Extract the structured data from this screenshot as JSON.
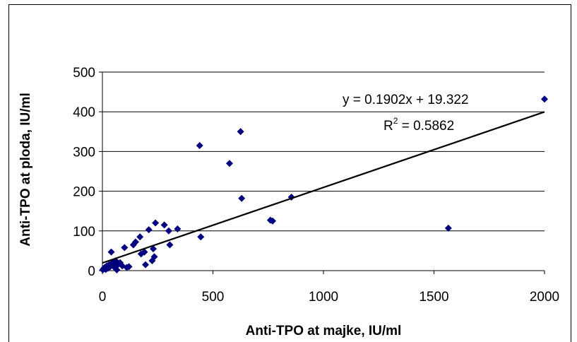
{
  "chart_data": {
    "type": "scatter",
    "title": "",
    "xlabel": "Anti-TPO at majke, IU/ml",
    "ylabel": "Anti-TPO at ploda, IU/ml",
    "xlim": [
      0,
      2000
    ],
    "ylim": [
      0,
      500
    ],
    "x_ticks": [
      "0",
      "500",
      "1000",
      "1500",
      "2000"
    ],
    "y_ticks": [
      "0",
      "100",
      "200",
      "300",
      "400",
      "500"
    ],
    "grid": {
      "horizontal": true,
      "vertical": false
    },
    "marker_color": "#000080",
    "line_color": "#000000",
    "points": [
      [
        2,
        2
      ],
      [
        5,
        5
      ],
      [
        10,
        8
      ],
      [
        15,
        3
      ],
      [
        20,
        12
      ],
      [
        25,
        6
      ],
      [
        30,
        15
      ],
      [
        35,
        10
      ],
      [
        40,
        47
      ],
      [
        45,
        20
      ],
      [
        50,
        18
      ],
      [
        55,
        8
      ],
      [
        60,
        25
      ],
      [
        65,
        2
      ],
      [
        70,
        15
      ],
      [
        80,
        20
      ],
      [
        90,
        12
      ],
      [
        100,
        58
      ],
      [
        110,
        8
      ],
      [
        120,
        10
      ],
      [
        140,
        65
      ],
      [
        150,
        72
      ],
      [
        170,
        85
      ],
      [
        175,
        42
      ],
      [
        190,
        47
      ],
      [
        195,
        15
      ],
      [
        210,
        103
      ],
      [
        225,
        25
      ],
      [
        230,
        55
      ],
      [
        235,
        35
      ],
      [
        240,
        120
      ],
      [
        280,
        115
      ],
      [
        300,
        100
      ],
      [
        305,
        65
      ],
      [
        340,
        105
      ],
      [
        440,
        315
      ],
      [
        445,
        85
      ],
      [
        575,
        270
      ],
      [
        625,
        350
      ],
      [
        630,
        182
      ],
      [
        760,
        127
      ],
      [
        770,
        125
      ],
      [
        855,
        185
      ],
      [
        1565,
        107
      ],
      [
        2000,
        432
      ]
    ],
    "trendline": {
      "slope": 0.1902,
      "intercept": 19.322,
      "x_range": [
        0,
        2000
      ],
      "equation_label": "y = 0.1902x + 19.322",
      "r2_label": "R",
      "r2_sup": "2",
      "r2_value": " = 0.5862"
    }
  }
}
